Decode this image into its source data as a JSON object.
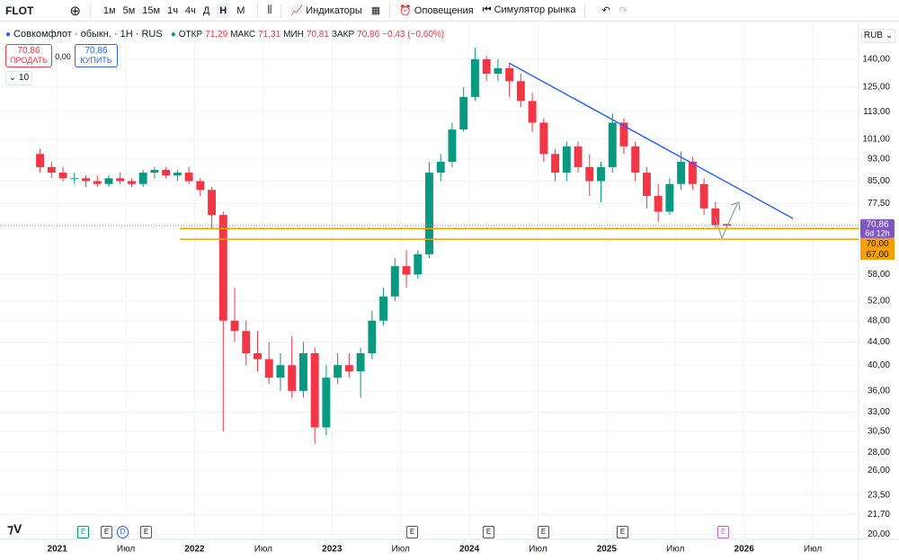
{
  "toolbar": {
    "symbol": "FLOT",
    "intervals": [
      "1м",
      "5м",
      "15м",
      "1ч",
      "4ч",
      "Д",
      "Н",
      "М"
    ],
    "indicators": "Индикаторы",
    "alerts": "Оповещения",
    "replay": "Симулятор рынка"
  },
  "legend": {
    "name": "Совкомфлот · обыкн. · 1Н · RUS",
    "open_label": "ОТКР",
    "open": "71,29",
    "high_label": "МАКС",
    "high": "71,31",
    "low_label": "МИН",
    "low": "70,81",
    "close_label": "ЗАКР",
    "close": "70,86",
    "change": "−0,43 (−0,60%)",
    "sell_price": "70,86",
    "sell": "ПРОДАТЬ",
    "spread": "0,00",
    "buy_price": "70,86",
    "buy": "КУПИТЬ",
    "indicator_count": "10"
  },
  "currency": "RUB",
  "events": [
    "E",
    "E",
    "D",
    "E",
    "E",
    "E",
    "E",
    "E",
    "E"
  ],
  "chart_data": {
    "type": "candlestick",
    "log_scale": true,
    "grid": true,
    "up_color": "#089981",
    "down_color": "#f23645",
    "x": [
      "2020-11",
      "2020-12",
      "2021-01",
      "2021-02",
      "2021-03",
      "2021-04",
      "2021-05",
      "2021-06",
      "2021-07",
      "2021-08",
      "2021-09",
      "2021-10",
      "2021-11",
      "2021-12",
      "2022-01",
      "2022-02",
      "2022-03",
      "2022-04",
      "2022-05",
      "2022-06",
      "2022-07",
      "2022-08",
      "2022-09",
      "2022-10",
      "2022-11",
      "2022-12",
      "2023-01",
      "2023-02",
      "2023-03",
      "2023-04",
      "2023-05",
      "2023-06",
      "2023-07",
      "2023-08",
      "2023-09",
      "2023-10",
      "2023-11",
      "2023-12",
      "2024-01",
      "2024-02",
      "2024-03",
      "2024-04",
      "2024-05",
      "2024-06",
      "2024-07",
      "2024-08",
      "2024-09",
      "2024-10",
      "2024-11",
      "2024-12",
      "2025-01",
      "2025-02",
      "2025-03",
      "2025-04",
      "2025-05",
      "2025-06",
      "2025-07",
      "2025-08",
      "2025-09",
      "2025-10",
      "2025-11"
    ],
    "open": [
      95,
      90,
      88,
      86,
      86,
      85,
      84,
      86,
      85,
      84,
      88,
      89,
      87,
      88,
      85,
      82,
      74,
      48,
      46,
      42,
      41,
      38,
      40,
      36,
      42,
      31,
      38,
      40,
      39,
      42,
      48,
      53,
      60,
      58,
      63,
      88,
      92,
      105,
      120,
      140,
      132,
      135,
      128,
      118,
      108,
      95,
      88,
      98,
      90,
      85,
      90,
      108,
      98,
      88,
      80,
      75,
      84,
      92,
      84,
      76,
      71.29
    ],
    "high": [
      97,
      92,
      90,
      88,
      87,
      87,
      87,
      88,
      86,
      89,
      90,
      90,
      89,
      90,
      86,
      83,
      75,
      55,
      48,
      46,
      44,
      42,
      45,
      44,
      43,
      40,
      42,
      42,
      43,
      50,
      55,
      62,
      64,
      64,
      92,
      95,
      108,
      125,
      147,
      142,
      140,
      138,
      132,
      122,
      110,
      97,
      100,
      100,
      95,
      92,
      112,
      110,
      100,
      90,
      84,
      86,
      96,
      94,
      86,
      78,
      71.31
    ],
    "low": [
      88,
      86,
      85,
      84,
      83,
      83,
      83,
      84,
      83,
      83,
      86,
      86,
      85,
      84,
      80,
      70,
      30.5,
      44,
      40,
      39,
      37,
      36,
      35,
      35,
      29,
      30,
      37,
      38,
      35,
      41,
      47,
      52,
      55,
      57,
      62,
      85,
      90,
      104,
      118,
      128,
      128,
      120,
      115,
      104,
      92,
      85,
      85,
      88,
      80,
      78,
      88,
      95,
      85,
      76,
      72,
      74,
      82,
      82,
      74,
      70,
      70.81
    ],
    "close": [
      90,
      88,
      86,
      86,
      85,
      84,
      86,
      85,
      84,
      88,
      89,
      87,
      88,
      85,
      82,
      74,
      48,
      46,
      42,
      41,
      38,
      40,
      36,
      42,
      31,
      38,
      40,
      39,
      42,
      48,
      53,
      60,
      58,
      63,
      88,
      92,
      105,
      120,
      140,
      132,
      135,
      128,
      118,
      108,
      95,
      88,
      98,
      90,
      85,
      90,
      108,
      98,
      88,
      80,
      75,
      84,
      92,
      84,
      76,
      71,
      70.86
    ],
    "xlim": [
      "2020-08",
      "2026-11"
    ],
    "xticks": [
      {
        "value": "2021-01",
        "label": "2021"
      },
      {
        "value": "2021-07",
        "label": "Июл"
      },
      {
        "value": "2022-01",
        "label": "2022"
      },
      {
        "value": "2022-07",
        "label": "Июл"
      },
      {
        "value": "2023-01",
        "label": "2023"
      },
      {
        "value": "2023-07",
        "label": "Июл"
      },
      {
        "value": "2024-01",
        "label": "2024"
      },
      {
        "value": "2024-07",
        "label": "Июл"
      },
      {
        "value": "2025-01",
        "label": "2025"
      },
      {
        "value": "2025-07",
        "label": "Июл"
      },
      {
        "value": "2026-01",
        "label": "2026"
      },
      {
        "value": "2026-07",
        "label": "Июл"
      }
    ],
    "ylim": [
      19.6,
      161
    ],
    "yticks": [
      {
        "value": 140,
        "label": "140,00"
      },
      {
        "value": 125,
        "label": "125,00"
      },
      {
        "value": 113,
        "label": "113,00"
      },
      {
        "value": 101,
        "label": "101,00"
      },
      {
        "value": 93,
        "label": "93,00"
      },
      {
        "value": 85,
        "label": "85,00"
      },
      {
        "value": 77.5,
        "label": "77,50"
      },
      {
        "value": 58,
        "label": "58,00"
      },
      {
        "value": 52,
        "label": "52,00"
      },
      {
        "value": 48,
        "label": "48,00"
      },
      {
        "value": 44,
        "label": "44,00"
      },
      {
        "value": 40,
        "label": "40,00"
      },
      {
        "value": 36,
        "label": "36,00"
      },
      {
        "value": 33,
        "label": "33,00"
      },
      {
        "value": 30.5,
        "label": "30,50"
      },
      {
        "value": 28,
        "label": "28,00"
      },
      {
        "value": 26,
        "label": "26,00"
      },
      {
        "value": 23.5,
        "label": "23,50"
      },
      {
        "value": 21.7,
        "label": "21,70"
      },
      {
        "value": 20,
        "label": "20,00"
      }
    ],
    "last_price": {
      "value": 70.86,
      "label": "70,86",
      "countdown": "6d 12h",
      "color": "#7e57c2"
    },
    "price_lines": [
      {
        "value": 70,
        "label": "70,00"
      },
      {
        "value": 67,
        "label": "67,00"
      }
    ],
    "price_line_color": "#f59f00"
  }
}
